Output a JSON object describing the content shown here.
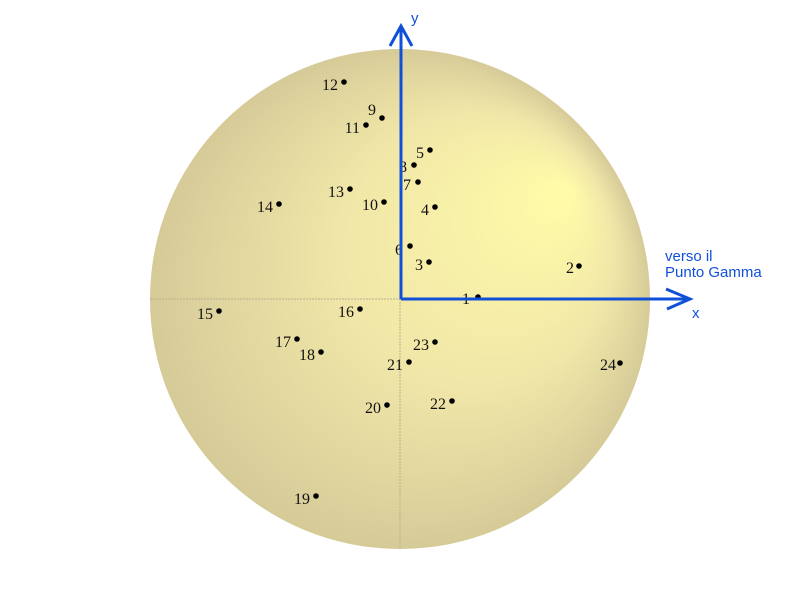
{
  "diagram": {
    "axes": {
      "x_label": "x",
      "y_label": "y",
      "direction_note": [
        "verso il",
        "Punto Gamma"
      ]
    },
    "point_labels": [
      "1",
      "2",
      "3",
      "4",
      "5",
      "6",
      "7",
      "8",
      "9",
      "10",
      "11",
      "12",
      "13",
      "14",
      "15",
      "16",
      "17",
      "18",
      "19",
      "20",
      "21",
      "22",
      "23",
      "24"
    ],
    "colors": {
      "axis": "#1050d8",
      "sphere_highlight": "#fffca8",
      "sphere_edge": "#d6cb98",
      "point": "#000000"
    }
  }
}
